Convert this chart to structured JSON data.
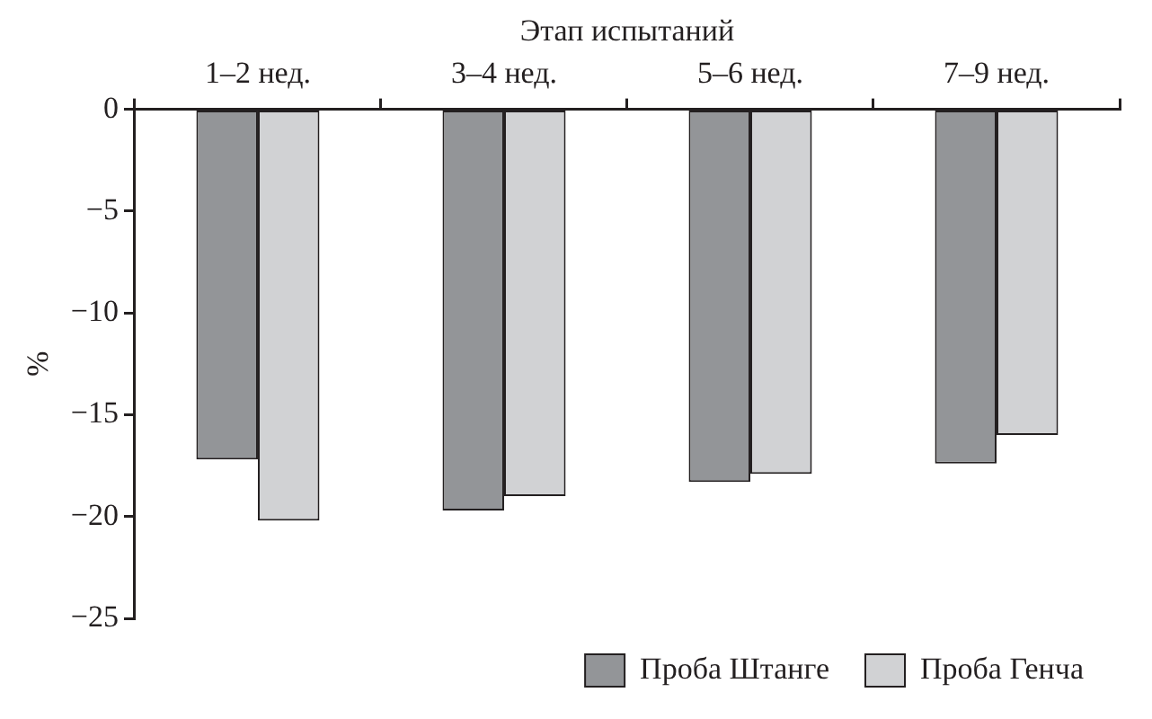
{
  "chart_data": {
    "type": "bar",
    "xlabel": "Этап испытаний",
    "ylabel": "%",
    "categories": [
      "1–2 нед.",
      "3–4 нед.",
      "5–6 нед.",
      "7–9 нед."
    ],
    "series": [
      {
        "name": "Проба Штанге",
        "color": "#939598",
        "values": [
          -17.2,
          -19.7,
          -18.3,
          -17.4
        ]
      },
      {
        "name": "Проба Генча",
        "color": "#d1d2d4",
        "values": [
          -20.2,
          -19.0,
          -17.9,
          -16.0
        ]
      }
    ],
    "ylim": [
      -25,
      0
    ],
    "yticks": [
      {
        "value": -25,
        "label": "−25"
      },
      {
        "value": -20,
        "label": "−20"
      },
      {
        "value": -15,
        "label": "−15"
      },
      {
        "value": -10,
        "label": "−10"
      },
      {
        "value": -5,
        "label": "−5"
      },
      0
    ],
    "grid": false,
    "legend": "bottom right"
  }
}
